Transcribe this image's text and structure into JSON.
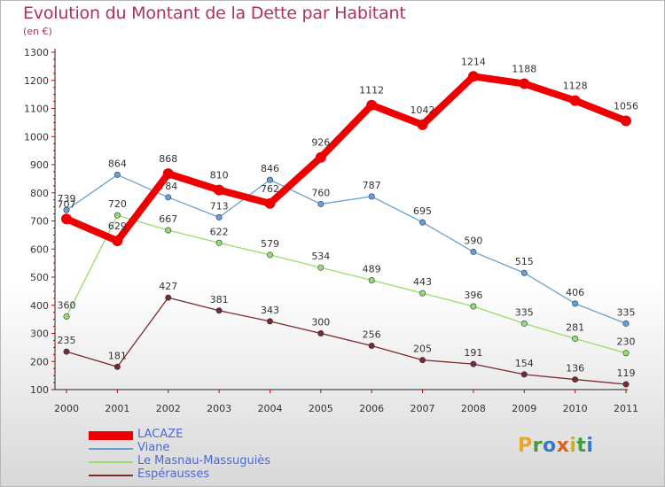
{
  "header": {
    "title": "Evolution du Montant de la Dette par Habitant",
    "subtitle": "(en €)"
  },
  "logo": {
    "text": "Proxiti",
    "letters": [
      {
        "ch": "P",
        "color": "#e8a72c"
      },
      {
        "ch": "r",
        "color": "#4a9a3a"
      },
      {
        "ch": "o",
        "color": "#3a78c8"
      },
      {
        "ch": "x",
        "color": "#e06020"
      },
      {
        "ch": "i",
        "color": "#c8b020"
      },
      {
        "ch": "t",
        "color": "#3aa040"
      },
      {
        "ch": "i",
        "color": "#3a78c8"
      }
    ]
  },
  "chart_data": {
    "type": "line",
    "title": "Evolution du Montant de la Dette par Habitant",
    "subtitle": "(en €)",
    "x": [
      "2000",
      "2001",
      "2002",
      "2003",
      "2004",
      "2005",
      "2006",
      "2007",
      "2008",
      "2009",
      "2010",
      "2011"
    ],
    "ylim": [
      100,
      1300
    ],
    "yticks": [
      100,
      200,
      300,
      400,
      500,
      600,
      700,
      800,
      900,
      1000,
      1100,
      1200,
      1300
    ],
    "grid": false,
    "legend_position": "bottom-left",
    "series": [
      {
        "name": "LACAZE",
        "color": "#ee0000",
        "bold": true,
        "values": [
          707,
          629,
          868,
          810,
          762,
          926,
          1112,
          1042,
          1214,
          1188,
          1128,
          1056
        ]
      },
      {
        "name": "Viane",
        "color": "#6aa0d0",
        "bold": false,
        "values": [
          739,
          864,
          784,
          713,
          846,
          760,
          787,
          695,
          590,
          515,
          406,
          335
        ]
      },
      {
        "name": "Le Masnau-Massuguiès",
        "color": "#99dd66",
        "bold": false,
        "values": [
          360,
          720,
          667,
          622,
          579,
          534,
          489,
          443,
          396,
          335,
          281,
          230
        ]
      },
      {
        "name": "Espérausses",
        "color": "#7a2a2a",
        "bold": false,
        "values": [
          235,
          181,
          427,
          381,
          343,
          300,
          256,
          205,
          191,
          154,
          136,
          119
        ]
      }
    ]
  }
}
